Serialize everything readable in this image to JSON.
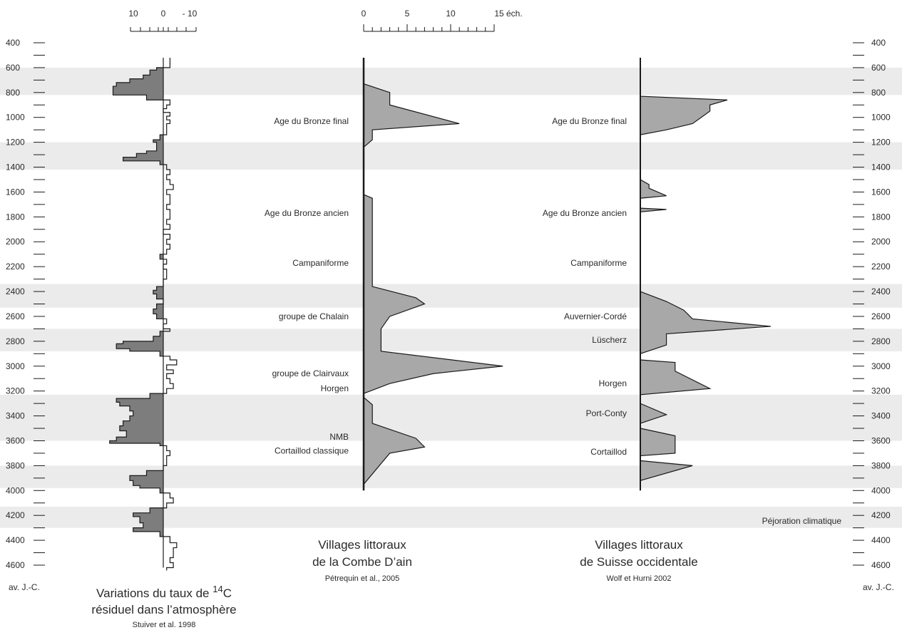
{
  "chart_data": {
    "type": "area",
    "y_axis": {
      "ticks": [
        "400",
        "600",
        "800",
        "1000",
        "1200",
        "1400",
        "1600",
        "1800",
        "2000",
        "2200",
        "2400",
        "2600",
        "2800",
        "3000",
        "3200",
        "3400",
        "3600",
        "3800",
        "4000",
        "4200",
        "4400",
        "4600"
      ],
      "ylim": [
        400,
        4600
      ],
      "unit_label": "av. J.-C.",
      "right_ticks": [
        "400",
        "600",
        "800",
        "1000",
        "1200",
        "1400",
        "1600",
        "1800",
        "2000",
        "2200",
        "2400",
        "2600",
        "2800",
        "3000",
        "3200",
        "3400",
        "3600",
        "3800",
        "4000",
        "4200",
        "4400",
        "4600"
      ]
    },
    "climate_bands": [
      {
        "from": 600,
        "to": 820
      },
      {
        "from": 1200,
        "to": 1420
      },
      {
        "from": 2340,
        "to": 2530
      },
      {
        "from": 2700,
        "to": 2880
      },
      {
        "from": 3230,
        "to": 3600
      },
      {
        "from": 3800,
        "to": 3980
      },
      {
        "from": 4130,
        "to": 4300
      }
    ],
    "climate_band_label": "Péjoration climatique",
    "panels": [
      {
        "id": "c14",
        "title_prefix": "Variations du taux de ",
        "title_sup": "14",
        "title_suffix": "C",
        "title_line2": "résiduel dans l’atmosphère",
        "source": "Stuiver et al. 1998",
        "axis_ticks": [
          "10",
          "0",
          "- 10"
        ],
        "series": [
          [
            520,
            -2
          ],
          [
            560,
            -2
          ],
          [
            600,
            2
          ],
          [
            620,
            4
          ],
          [
            660,
            6
          ],
          [
            690,
            10
          ],
          [
            720,
            14
          ],
          [
            750,
            15
          ],
          [
            790,
            15
          ],
          [
            820,
            5
          ],
          [
            860,
            -2
          ],
          [
            900,
            -1
          ],
          [
            930,
            0
          ],
          [
            960,
            -2
          ],
          [
            990,
            -1
          ],
          [
            1020,
            -2
          ],
          [
            1050,
            -1
          ],
          [
            1100,
            -1
          ],
          [
            1140,
            1
          ],
          [
            1180,
            3
          ],
          [
            1200,
            2
          ],
          [
            1240,
            2
          ],
          [
            1270,
            5
          ],
          [
            1290,
            8
          ],
          [
            1320,
            12
          ],
          [
            1350,
            1
          ],
          [
            1380,
            -1
          ],
          [
            1420,
            -2
          ],
          [
            1460,
            -1
          ],
          [
            1500,
            -2
          ],
          [
            1540,
            -3
          ],
          [
            1580,
            -1
          ],
          [
            1620,
            -2
          ],
          [
            1660,
            -2
          ],
          [
            1700,
            -1
          ],
          [
            1740,
            -2
          ],
          [
            1780,
            -2
          ],
          [
            1820,
            -1
          ],
          [
            1860,
            -2
          ],
          [
            1900,
            0
          ],
          [
            1940,
            -2
          ],
          [
            1980,
            -1
          ],
          [
            2020,
            -2
          ],
          [
            2060,
            -1
          ],
          [
            2100,
            1
          ],
          [
            2140,
            -1
          ],
          [
            2180,
            0
          ],
          [
            2220,
            -1
          ],
          [
            2260,
            -1
          ],
          [
            2300,
            0
          ],
          [
            2340,
            0
          ],
          [
            2360,
            2
          ],
          [
            2390,
            3
          ],
          [
            2420,
            2
          ],
          [
            2460,
            0
          ],
          [
            2500,
            2
          ],
          [
            2540,
            3
          ],
          [
            2580,
            2
          ],
          [
            2620,
            -1
          ],
          [
            2660,
            0
          ],
          [
            2700,
            -2
          ],
          [
            2720,
            1
          ],
          [
            2760,
            3
          ],
          [
            2800,
            12
          ],
          [
            2820,
            14
          ],
          [
            2860,
            10
          ],
          [
            2880,
            1
          ],
          [
            2920,
            -2
          ],
          [
            2950,
            -4
          ],
          [
            2990,
            -1
          ],
          [
            3030,
            -3
          ],
          [
            3060,
            -1
          ],
          [
            3100,
            -2
          ],
          [
            3140,
            -3
          ],
          [
            3180,
            -1
          ],
          [
            3210,
            -1
          ],
          [
            3220,
            4
          ],
          [
            3260,
            14
          ],
          [
            3290,
            13
          ],
          [
            3320,
            10
          ],
          [
            3360,
            9
          ],
          [
            3400,
            10
          ],
          [
            3440,
            12
          ],
          [
            3480,
            13
          ],
          [
            3520,
            11
          ],
          [
            3570,
            14
          ],
          [
            3600,
            16
          ],
          [
            3620,
            1
          ],
          [
            3640,
            -1
          ],
          [
            3680,
            -2
          ],
          [
            3720,
            -1
          ],
          [
            3760,
            -1
          ],
          [
            3800,
            0
          ],
          [
            3840,
            5
          ],
          [
            3880,
            10
          ],
          [
            3920,
            9
          ],
          [
            3960,
            7
          ],
          [
            3980,
            1
          ],
          [
            4020,
            -2
          ],
          [
            4060,
            -3
          ],
          [
            4100,
            -1
          ],
          [
            4140,
            4
          ],
          [
            4180,
            9
          ],
          [
            4210,
            7
          ],
          [
            4260,
            6
          ],
          [
            4300,
            9
          ],
          [
            4330,
            1
          ],
          [
            4370,
            -2
          ],
          [
            4420,
            -4
          ],
          [
            4460,
            -3
          ],
          [
            4500,
            -3
          ],
          [
            4540,
            -2
          ],
          [
            4580,
            -3
          ],
          [
            4620,
            -1
          ]
        ]
      },
      {
        "id": "combe",
        "title": "Villages littoraux",
        "title_line2": "de la Combe D’ain",
        "source": "Pétrequin et al., 2005",
        "axis_ticks": [
          "0",
          "5",
          "10",
          "15 éch."
        ],
        "xlim": [
          0,
          15
        ],
        "series": [
          [
            520,
            0
          ],
          [
            730,
            0
          ],
          [
            800,
            3
          ],
          [
            900,
            3
          ],
          [
            1050,
            11
          ],
          [
            1100,
            1
          ],
          [
            1180,
            1
          ],
          [
            1240,
            0
          ],
          [
            1620,
            0
          ],
          [
            1650,
            1
          ],
          [
            1680,
            1
          ],
          [
            2360,
            1
          ],
          [
            2450,
            6
          ],
          [
            2500,
            7
          ],
          [
            2600,
            3
          ],
          [
            2700,
            2
          ],
          [
            2780,
            2
          ],
          [
            2880,
            2
          ],
          [
            3000,
            16
          ],
          [
            3060,
            8
          ],
          [
            3140,
            3
          ],
          [
            3220,
            0
          ],
          [
            3250,
            0
          ],
          [
            3310,
            1
          ],
          [
            3460,
            1
          ],
          [
            3580,
            6
          ],
          [
            3650,
            7
          ],
          [
            3700,
            3
          ],
          [
            3950,
            0
          ]
        ],
        "labels": [
          {
            "text": "Age du Bronze final",
            "y": 1030
          },
          {
            "text": "Age du Bronze ancien",
            "y": 1770
          },
          {
            "text": "Campaniforme",
            "y": 2170
          },
          {
            "text": "groupe de Chalain",
            "y": 2600
          },
          {
            "text": "groupe de Clairvaux",
            "y": 3060
          },
          {
            "text": "Horgen",
            "y": 3180
          },
          {
            "text": "NMB",
            "y": 3570
          },
          {
            "text": "Cortaillod classique",
            "y": 3680
          }
        ]
      },
      {
        "id": "suisse",
        "title": "Villages littoraux",
        "title_line2": "de Suisse occidentale",
        "source": "Wolf et Hurni 2002",
        "xlim": [
          0,
          15
        ],
        "series_segments": [
          [
            [
              800,
              0
            ],
            [
              830,
              0
            ],
            [
              860,
              10
            ],
            [
              900,
              8
            ],
            [
              950,
              8
            ],
            [
              1000,
              7
            ],
            [
              1050,
              6
            ],
            [
              1100,
              3
            ],
            [
              1140,
              0
            ]
          ],
          [
            [
              1500,
              0
            ],
            [
              1540,
              1
            ],
            [
              1570,
              1
            ],
            [
              1630,
              3
            ],
            [
              1650,
              0
            ]
          ],
          [
            [
              1730,
              0
            ],
            [
              1740,
              3
            ],
            [
              1760,
              0
            ]
          ],
          [
            [
              2400,
              0
            ],
            [
              2480,
              3
            ],
            [
              2550,
              5
            ],
            [
              2620,
              6
            ],
            [
              2680,
              15
            ],
            [
              2740,
              3
            ],
            [
              2830,
              3
            ],
            [
              2900,
              0
            ]
          ],
          [
            [
              2950,
              0
            ],
            [
              2970,
              4
            ],
            [
              3040,
              4
            ],
            [
              3180,
              8
            ],
            [
              3230,
              0
            ]
          ],
          [
            [
              3300,
              0
            ],
            [
              3390,
              3
            ],
            [
              3460,
              0
            ]
          ],
          [
            [
              3500,
              0
            ],
            [
              3560,
              4
            ],
            [
              3630,
              4
            ],
            [
              3700,
              4
            ],
            [
              3720,
              0
            ]
          ],
          [
            [
              3760,
              0
            ],
            [
              3800,
              6
            ],
            [
              3920,
              0
            ]
          ]
        ],
        "labels": [
          {
            "text": "Age du Bronze final",
            "y": 1030
          },
          {
            "text": "Age du Bronze ancien",
            "y": 1770
          },
          {
            "text": "Campaniforme",
            "y": 2170
          },
          {
            "text": "Auvernier-Cordé",
            "y": 2600
          },
          {
            "text": "Lüscherz",
            "y": 2790
          },
          {
            "text": "Horgen",
            "y": 3140
          },
          {
            "text": "Port-Conty",
            "y": 3380
          },
          {
            "text": "Cortaillod",
            "y": 3690
          }
        ]
      }
    ],
    "colors": {
      "band": "#ebebeb",
      "fill": "#a8a8a8",
      "c14_fill": "#7d7d7d",
      "line": "#1a1a1a"
    }
  }
}
